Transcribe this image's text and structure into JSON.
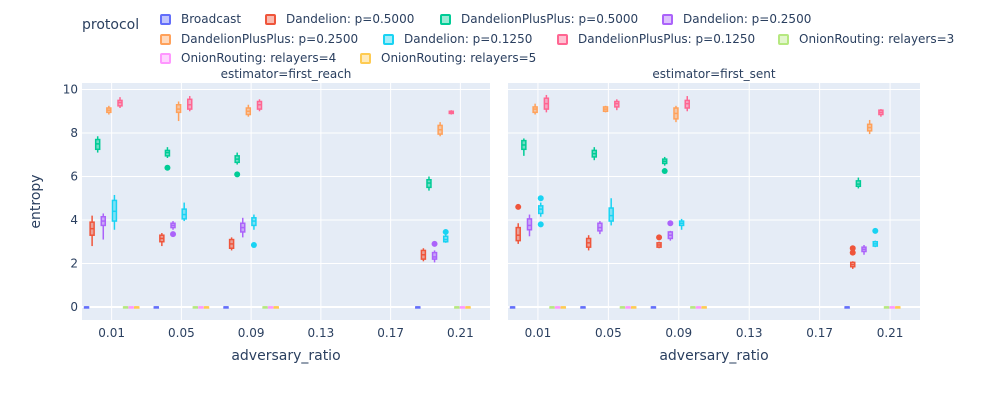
{
  "legend": {
    "title": "protocol",
    "items": [
      {
        "name": "Broadcast",
        "color": "#636efa"
      },
      {
        "name": "Dandelion: p=0.5000",
        "color": "#ef553b"
      },
      {
        "name": "DandelionPlusPlus: p=0.5000",
        "color": "#00cc96"
      },
      {
        "name": "Dandelion: p=0.2500",
        "color": "#ab63fa"
      },
      {
        "name": "DandelionPlusPlus: p=0.2500",
        "color": "#ffa15a"
      },
      {
        "name": "Dandelion: p=0.1250",
        "color": "#19d3f3"
      },
      {
        "name": "DandelionPlusPlus: p=0.1250",
        "color": "#ff6692"
      },
      {
        "name": "OnionRouting: relayers=3",
        "color": "#b6e880"
      },
      {
        "name": "OnionRouting: relayers=4",
        "color": "#ff97ff"
      },
      {
        "name": "OnionRouting: relayers=5",
        "color": "#fecb52"
      }
    ]
  },
  "chart_data": {
    "type": "box",
    "ylabel": "entropy",
    "ylim": [
      -0.6,
      10.3
    ],
    "yticks": [
      0,
      2,
      4,
      6,
      8,
      10
    ],
    "xlim": [
      -0.007,
      0.227
    ],
    "xticks": [
      "0.01",
      "0.05",
      "0.09",
      "0.13",
      "0.17",
      "0.21"
    ],
    "x_categories": [
      0.01,
      0.05,
      0.09,
      0.2
    ],
    "panels": [
      {
        "title": "estimator=first_reach",
        "xlabel": "adversary_ratio",
        "series": [
          {
            "name": "Broadcast",
            "boxes": [
              [
                0,
                0,
                0,
                0,
                0
              ],
              [
                0,
                0,
                0,
                0,
                0
              ],
              [
                0,
                0,
                0,
                0,
                0
              ],
              [
                0,
                0,
                0,
                0,
                0
              ]
            ],
            "outliers": [
              [],
              [],
              [],
              []
            ]
          },
          {
            "name": "Dandelion: p=0.5000",
            "boxes": [
              [
                2.8,
                3.3,
                3.6,
                3.9,
                4.2
              ],
              [
                2.8,
                3.0,
                3.15,
                3.3,
                3.4
              ],
              [
                2.6,
                2.7,
                2.9,
                3.1,
                3.2
              ],
              [
                2.1,
                2.2,
                2.4,
                2.6,
                2.7
              ]
            ],
            "outliers": [
              [],
              [],
              [],
              []
            ]
          },
          {
            "name": "DandelionPlusPlus: p=0.5000",
            "boxes": [
              [
                7.1,
                7.25,
                7.5,
                7.7,
                7.85
              ],
              [
                6.85,
                6.95,
                7.1,
                7.2,
                7.35
              ],
              [
                6.55,
                6.65,
                6.8,
                6.95,
                7.1
              ],
              [
                5.35,
                5.5,
                5.7,
                5.85,
                6.0
              ]
            ],
            "outliers": [
              [],
              [
                6.4
              ],
              [
                6.1
              ],
              []
            ]
          },
          {
            "name": "Dandelion: p=0.2500",
            "boxes": [
              [
                3.1,
                3.75,
                3.95,
                4.15,
                4.3
              ],
              [
                3.55,
                3.65,
                3.75,
                3.85,
                3.95
              ],
              [
                3.2,
                3.45,
                3.65,
                3.85,
                4.1
              ],
              [
                2.05,
                2.2,
                2.3,
                2.5,
                2.6
              ]
            ],
            "outliers": [
              [],
              [
                3.35
              ],
              [],
              [
                2.9
              ]
            ]
          },
          {
            "name": "DandelionPlusPlus: p=0.2500",
            "boxes": [
              [
                8.85,
                8.95,
                9.05,
                9.15,
                9.25
              ],
              [
                8.55,
                8.95,
                9.1,
                9.3,
                9.45
              ],
              [
                8.75,
                8.85,
                9.0,
                9.15,
                9.3
              ],
              [
                7.85,
                7.95,
                8.15,
                8.35,
                8.5
              ]
            ],
            "outliers": [
              [],
              [],
              [],
              []
            ]
          },
          {
            "name": "Dandelion: p=0.1250",
            "boxes": [
              [
                3.55,
                3.95,
                4.4,
                4.9,
                5.15
              ],
              [
                3.95,
                4.05,
                4.25,
                4.5,
                4.8
              ],
              [
                3.55,
                3.75,
                3.95,
                4.1,
                4.25
              ],
              [
                2.95,
                3.0,
                3.1,
                3.25,
                3.35
              ]
            ],
            "outliers": [
              [],
              [],
              [
                2.85
              ],
              [
                3.45
              ]
            ]
          },
          {
            "name": "DandelionPlusPlus: p=0.1250",
            "boxes": [
              [
                9.15,
                9.25,
                9.4,
                9.5,
                9.65
              ],
              [
                9.0,
                9.1,
                9.3,
                9.55,
                9.7
              ],
              [
                9.0,
                9.1,
                9.3,
                9.45,
                9.55
              ],
              [
                8.85,
                8.9,
                8.95,
                9.0,
                9.05
              ]
            ],
            "outliers": [
              [],
              [],
              [],
              []
            ]
          },
          {
            "name": "OnionRouting: relayers=3",
            "boxes": [
              [
                0,
                0,
                0,
                0,
                0
              ],
              [
                0,
                0,
                0,
                0,
                0
              ],
              [
                0,
                0,
                0,
                0,
                0
              ],
              [
                0,
                0,
                0,
                0,
                0
              ]
            ],
            "outliers": [
              [],
              [],
              [],
              []
            ]
          },
          {
            "name": "OnionRouting: relayers=4",
            "boxes": [
              [
                0,
                0,
                0,
                0,
                0
              ],
              [
                0,
                0,
                0,
                0,
                0
              ],
              [
                0,
                0,
                0,
                0,
                0
              ],
              [
                0,
                0,
                0,
                0,
                0
              ]
            ],
            "outliers": [
              [],
              [],
              [],
              []
            ]
          },
          {
            "name": "OnionRouting: relayers=5",
            "boxes": [
              [
                0,
                0,
                0,
                0,
                0
              ],
              [
                0,
                0,
                0,
                0,
                0
              ],
              [
                0,
                0,
                0,
                0,
                0
              ],
              [
                0,
                0,
                0,
                0,
                0
              ]
            ],
            "outliers": [
              [],
              [],
              [],
              []
            ]
          }
        ]
      },
      {
        "title": "estimator=first_sent",
        "xlabel": "adversary_ratio",
        "series": [
          {
            "name": "Broadcast",
            "boxes": [
              [
                0,
                0,
                0,
                0,
                0
              ],
              [
                0,
                0,
                0,
                0,
                0
              ],
              [
                0,
                0,
                0,
                0,
                0
              ],
              [
                0,
                0,
                0,
                0,
                0
              ]
            ],
            "outliers": [
              [],
              [],
              [],
              []
            ]
          },
          {
            "name": "Dandelion: p=0.5000",
            "boxes": [
              [
                2.9,
                3.05,
                3.3,
                3.65,
                3.85
              ],
              [
                2.6,
                2.75,
                2.95,
                3.15,
                3.3
              ],
              [
                2.7,
                2.75,
                2.85,
                2.95,
                3.0
              ],
              [
                1.75,
                1.85,
                1.95,
                2.05,
                2.1
              ]
            ],
            "outliers": [
              [
                4.6
              ],
              [],
              [
                3.2
              ],
              [
                2.5,
                2.7
              ]
            ]
          },
          {
            "name": "DandelionPlusPlus: p=0.5000",
            "boxes": [
              [
                6.95,
                7.25,
                7.45,
                7.65,
                7.75
              ],
              [
                6.75,
                6.9,
                7.05,
                7.2,
                7.35
              ],
              [
                6.5,
                6.6,
                6.7,
                6.8,
                6.9
              ],
              [
                5.45,
                5.55,
                5.65,
                5.8,
                5.95
              ]
            ],
            "outliers": [
              [],
              [],
              [
                6.25
              ],
              []
            ]
          },
          {
            "name": "Dandelion: p=0.2500",
            "boxes": [
              [
                3.25,
                3.55,
                3.75,
                4.05,
                4.25
              ],
              [
                3.35,
                3.5,
                3.65,
                3.85,
                3.95
              ],
              [
                3.05,
                3.15,
                3.3,
                3.45,
                3.5
              ],
              [
                2.4,
                2.55,
                2.65,
                2.75,
                2.85
              ]
            ],
            "outliers": [
              [],
              [],
              [
                3.85
              ],
              []
            ]
          },
          {
            "name": "DandelionPlusPlus: p=0.2500",
            "boxes": [
              [
                8.85,
                8.95,
                9.1,
                9.2,
                9.35
              ],
              [
                8.95,
                9.0,
                9.1,
                9.2,
                9.25
              ],
              [
                8.5,
                8.65,
                8.9,
                9.15,
                9.25
              ],
              [
                7.95,
                8.1,
                8.25,
                8.4,
                8.6
              ]
            ],
            "outliers": [
              [],
              [],
              [],
              []
            ]
          },
          {
            "name": "Dandelion: p=0.1250",
            "boxes": [
              [
                4.15,
                4.3,
                4.5,
                4.65,
                4.8
              ],
              [
                3.75,
                3.95,
                4.2,
                4.55,
                5.0
              ],
              [
                3.55,
                3.75,
                3.85,
                3.95,
                4.05
              ],
              [
                2.75,
                2.8,
                2.9,
                3.0,
                3.05
              ]
            ],
            "outliers": [
              [
                3.8,
                5.0
              ],
              [],
              [],
              [
                3.5
              ]
            ]
          },
          {
            "name": "DandelionPlusPlus: p=0.1250",
            "boxes": [
              [
                8.95,
                9.1,
                9.35,
                9.6,
                9.75
              ],
              [
                9.05,
                9.2,
                9.35,
                9.45,
                9.55
              ],
              [
                9.0,
                9.15,
                9.35,
                9.5,
                9.7
              ],
              [
                8.75,
                8.85,
                8.95,
                9.05,
                9.1
              ]
            ],
            "outliers": [
              [],
              [],
              [],
              []
            ]
          },
          {
            "name": "OnionRouting: relayers=3",
            "boxes": [
              [
                0,
                0,
                0,
                0,
                0
              ],
              [
                0,
                0,
                0,
                0,
                0
              ],
              [
                0,
                0,
                0,
                0,
                0
              ],
              [
                0,
                0,
                0,
                0,
                0
              ]
            ],
            "outliers": [
              [],
              [],
              [],
              []
            ]
          },
          {
            "name": "OnionRouting: relayers=4",
            "boxes": [
              [
                0,
                0,
                0,
                0,
                0
              ],
              [
                0,
                0,
                0,
                0,
                0
              ],
              [
                0,
                0,
                0,
                0,
                0
              ],
              [
                0,
                0,
                0,
                0,
                0
              ]
            ],
            "outliers": [
              [],
              [],
              [],
              []
            ]
          },
          {
            "name": "OnionRouting: relayers=5",
            "boxes": [
              [
                0,
                0,
                0,
                0,
                0
              ],
              [
                0,
                0,
                0,
                0,
                0
              ],
              [
                0,
                0,
                0,
                0,
                0
              ],
              [
                0,
                0,
                0,
                0,
                0
              ]
            ],
            "outliers": [
              [],
              [],
              [],
              []
            ]
          }
        ]
      }
    ]
  }
}
